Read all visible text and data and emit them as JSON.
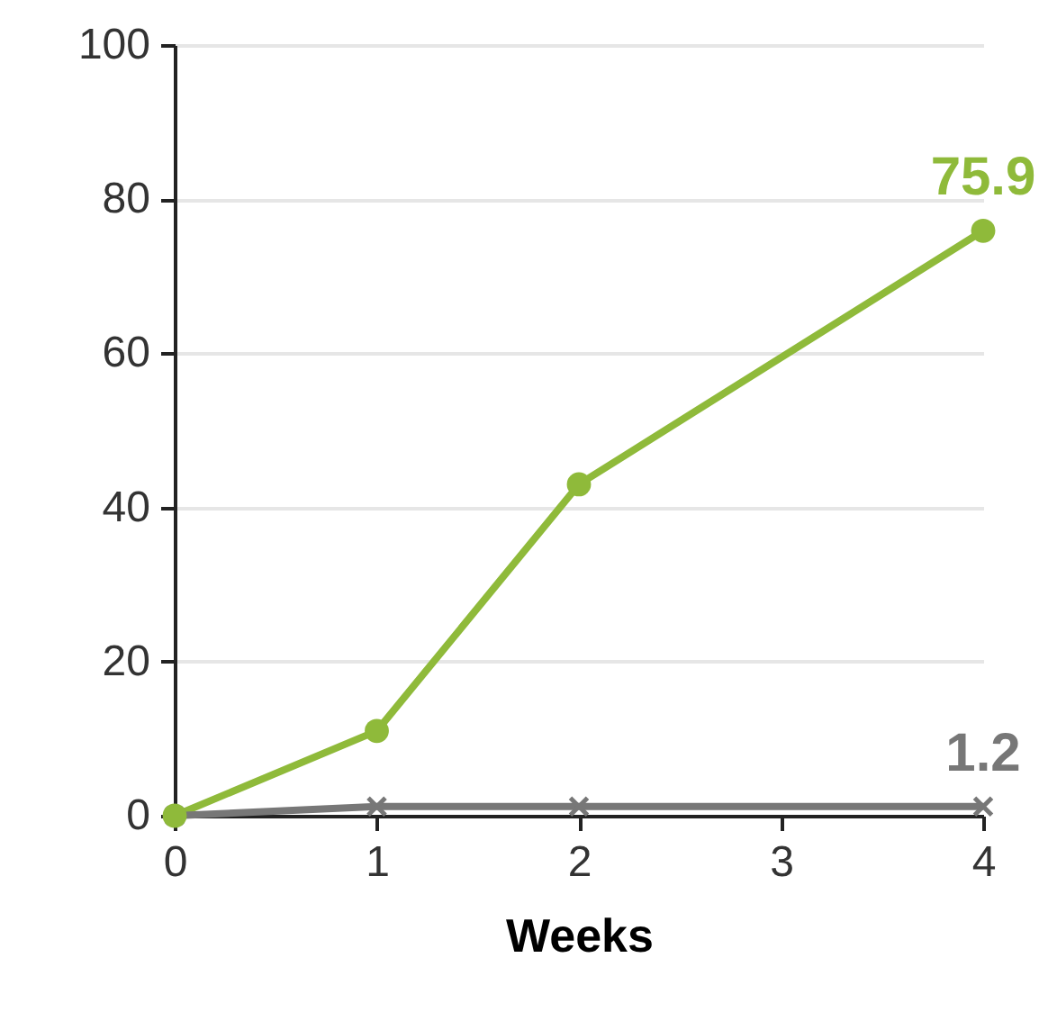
{
  "chart_data": {
    "type": "line",
    "xlabel": "Weeks",
    "xlim": [
      0,
      4
    ],
    "xticks": [
      0,
      1,
      2,
      3,
      4
    ],
    "ylim": [
      0,
      100
    ],
    "yticks": [
      0,
      20,
      40,
      60,
      80,
      100
    ],
    "grid": "y",
    "series": [
      {
        "color": "#8fba3a",
        "marker": "circle",
        "x": [
          0,
          1,
          2,
          4
        ],
        "values": [
          0,
          11,
          43,
          75.9
        ],
        "value_labels": [
          null,
          null,
          null,
          "75.9"
        ]
      },
      {
        "color": "#777777",
        "marker": "cross",
        "x": [
          0,
          1,
          2,
          4
        ],
        "values": [
          0,
          1.2,
          1.2,
          1.2
        ],
        "value_labels": [
          null,
          null,
          null,
          "1.2"
        ]
      }
    ]
  }
}
